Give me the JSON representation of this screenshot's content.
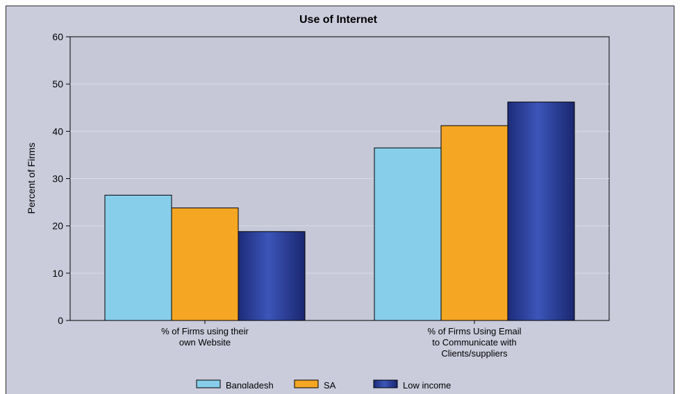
{
  "chart_data": {
    "type": "bar",
    "title": "Use of Internet",
    "ylabel": "Percent of Firms",
    "xlabel": "",
    "ylim": [
      0,
      60
    ],
    "yticks": [
      0,
      10,
      20,
      30,
      40,
      50,
      60
    ],
    "grid": true,
    "legend_position": "bottom",
    "categories": [
      [
        "% of Firms using their",
        "own Website"
      ],
      [
        "% of Firms Using Email",
        "to Communicate with",
        "Clients/suppliers"
      ]
    ],
    "series": [
      {
        "name": "Bangladesh",
        "values": [
          26.5,
          36.5
        ],
        "color": "#87ceeb"
      },
      {
        "name": "SA",
        "values": [
          23.8,
          41.2
        ],
        "color": "#f5a623"
      },
      {
        "name": "Low income",
        "values": [
          18.8,
          46.2
        ],
        "color": "#2b3d99"
      }
    ],
    "colors": {
      "background": "#cacbdb",
      "plot": "#c6c8d8",
      "gridline": "#dadbe6"
    }
  }
}
